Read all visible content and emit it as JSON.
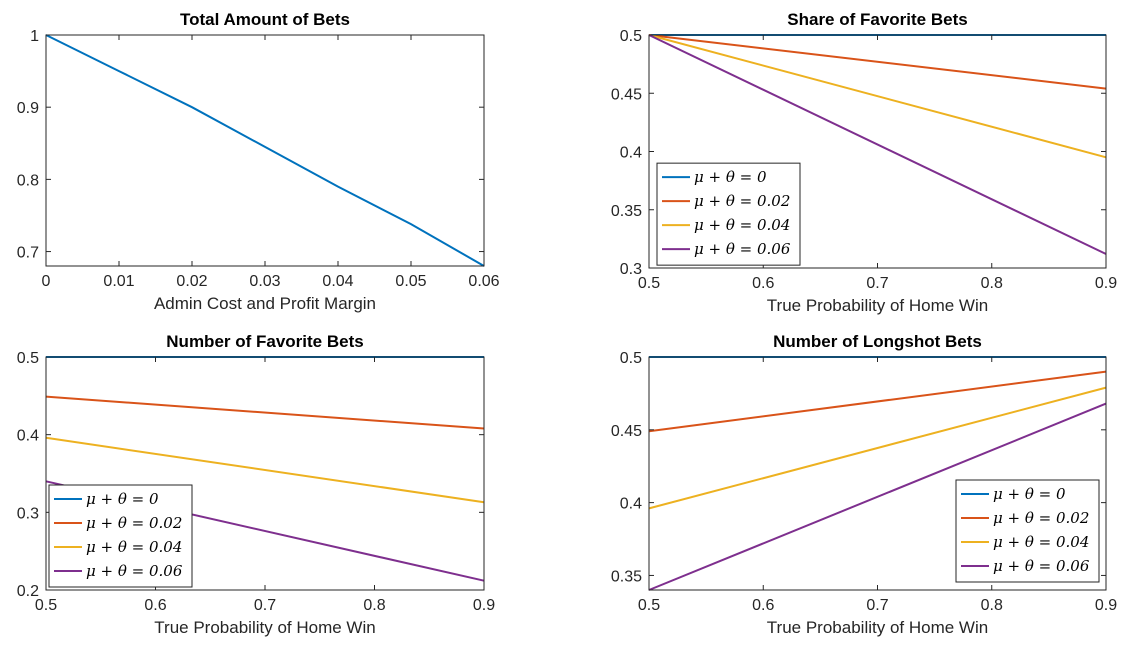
{
  "chart_data": [
    {
      "type": "line",
      "title": "Total Amount of Bets",
      "xlabel": "Admin Cost and Profit Margin",
      "ylabel": "",
      "xlim": [
        0,
        0.06
      ],
      "ylim": [
        0.68,
        1
      ],
      "xticks": [
        0,
        0.01,
        0.02,
        0.03,
        0.04,
        0.05,
        0.06
      ],
      "xtick_labels": [
        "0",
        "0.01",
        "0.02",
        "0.03",
        "0.04",
        "0.05",
        "0.06"
      ],
      "yticks": [
        0.7,
        0.8,
        0.9,
        1
      ],
      "ytick_labels": [
        "0.7",
        "0.8",
        "0.9",
        "1"
      ],
      "legend": false,
      "series": [
        {
          "color": "#0072BD",
          "x": [
            0,
            0.01,
            0.02,
            0.03,
            0.04,
            0.05,
            0.06
          ],
          "y": [
            1,
            0.95,
            0.9,
            0.845,
            0.79,
            0.738,
            0.68
          ]
        }
      ]
    },
    {
      "type": "line",
      "title": "Share of Favorite Bets",
      "xlabel": "True Probability of Home Win",
      "ylabel": "",
      "xlim": [
        0.5,
        0.9
      ],
      "ylim": [
        0.3,
        0.5
      ],
      "xticks": [
        0.5,
        0.6,
        0.7,
        0.8,
        0.9
      ],
      "xtick_labels": [
        "0.5",
        "0.6",
        "0.7",
        "0.8",
        "0.9"
      ],
      "yticks": [
        0.3,
        0.35,
        0.4,
        0.45,
        0.5
      ],
      "ytick_labels": [
        "0.3",
        "0.35",
        "0.4",
        "0.45",
        "0.5"
      ],
      "legend": "middle-left",
      "series": [
        {
          "name": "μ + θ = 0",
          "color": "#0072BD",
          "x": [
            0.5,
            0.9
          ],
          "y": [
            0.5,
            0.5
          ]
        },
        {
          "name": "μ + θ = 0.02",
          "color": "#D95319",
          "x": [
            0.5,
            0.9
          ],
          "y": [
            0.5,
            0.454
          ]
        },
        {
          "name": "μ + θ = 0.04",
          "color": "#EDB120",
          "x": [
            0.5,
            0.9
          ],
          "y": [
            0.5,
            0.395
          ]
        },
        {
          "name": "μ + θ = 0.06",
          "color": "#7E2F8E",
          "x": [
            0.5,
            0.9
          ],
          "y": [
            0.5,
            0.312
          ]
        }
      ]
    },
    {
      "type": "line",
      "title": "Number of Favorite Bets",
      "xlabel": "True Probability of Home Win",
      "ylabel": "",
      "xlim": [
        0.5,
        0.9
      ],
      "ylim": [
        0.2,
        0.5
      ],
      "xticks": [
        0.5,
        0.6,
        0.7,
        0.8,
        0.9
      ],
      "xtick_labels": [
        "0.5",
        "0.6",
        "0.7",
        "0.8",
        "0.9"
      ],
      "yticks": [
        0.2,
        0.3,
        0.4,
        0.5
      ],
      "ytick_labels": [
        "0.2",
        "0.3",
        "0.4",
        "0.5"
      ],
      "legend": "bottom-left",
      "series": [
        {
          "name": "μ + θ = 0",
          "color": "#0072BD",
          "x": [
            0.5,
            0.9
          ],
          "y": [
            0.5,
            0.5
          ]
        },
        {
          "name": "μ + θ = 0.02",
          "color": "#D95319",
          "x": [
            0.5,
            0.9
          ],
          "y": [
            0.449,
            0.408
          ]
        },
        {
          "name": "μ + θ = 0.04",
          "color": "#EDB120",
          "x": [
            0.5,
            0.9
          ],
          "y": [
            0.396,
            0.313
          ]
        },
        {
          "name": "μ + θ = 0.06",
          "color": "#7E2F8E",
          "x": [
            0.5,
            0.9
          ],
          "y": [
            0.34,
            0.212
          ]
        }
      ]
    },
    {
      "type": "line",
      "title": "Number of Longshot Bets",
      "xlabel": "True Probability of Home Win",
      "ylabel": "",
      "xlim": [
        0.5,
        0.9
      ],
      "ylim": [
        0.34,
        0.5
      ],
      "xticks": [
        0.5,
        0.6,
        0.7,
        0.8,
        0.9
      ],
      "xtick_labels": [
        "0.5",
        "0.6",
        "0.7",
        "0.8",
        "0.9"
      ],
      "yticks": [
        0.35,
        0.4,
        0.45,
        0.5
      ],
      "ytick_labels": [
        "0.35",
        "0.4",
        "0.45",
        "0.5"
      ],
      "legend": "bottom-right",
      "series": [
        {
          "name": "μ + θ = 0",
          "color": "#0072BD",
          "x": [
            0.5,
            0.9
          ],
          "y": [
            0.5,
            0.5
          ]
        },
        {
          "name": "μ + θ = 0.02",
          "color": "#D95319",
          "x": [
            0.5,
            0.9
          ],
          "y": [
            0.449,
            0.49
          ]
        },
        {
          "name": "μ + θ = 0.04",
          "color": "#EDB120",
          "x": [
            0.5,
            0.9
          ],
          "y": [
            0.396,
            0.479
          ]
        },
        {
          "name": "μ + θ = 0.06",
          "color": "#7E2F8E",
          "x": [
            0.5,
            0.9
          ],
          "y": [
            0.34,
            0.468
          ]
        }
      ]
    }
  ]
}
